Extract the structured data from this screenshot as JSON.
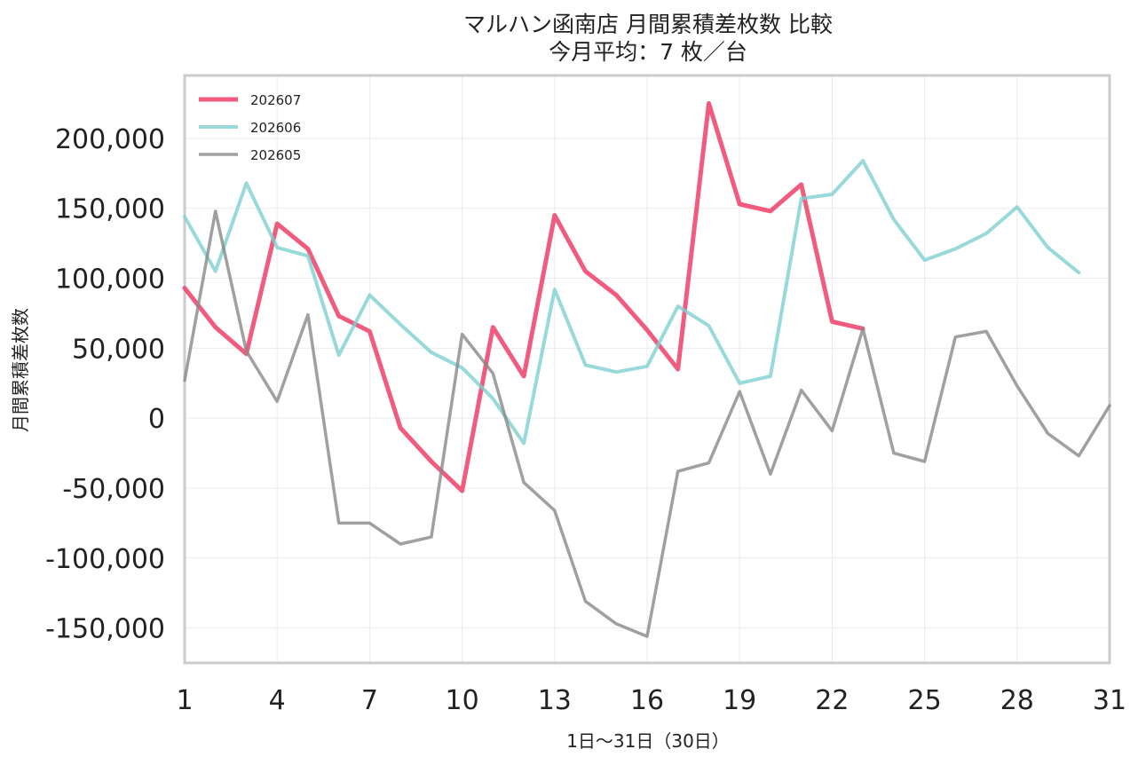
{
  "chart_data": {
    "type": "line",
    "title": "マルハン函南店 月間累積差枚数 比較",
    "subtitle": "今月平均：7 枚／台",
    "xlabel": "1日～31日（30日）",
    "ylabel": "月間累積差枚数",
    "xlim": [
      1,
      31
    ],
    "ylim": [
      -175000,
      245000
    ],
    "xticks": [
      1,
      4,
      7,
      10,
      13,
      16,
      19,
      22,
      25,
      28,
      31
    ],
    "yticks": [
      -150000,
      -100000,
      -50000,
      0,
      50000,
      100000,
      150000,
      200000
    ],
    "ytick_labels": [
      "-150,000",
      "-100,000",
      "-50,000",
      "0",
      "50,000",
      "100,000",
      "150,000",
      "200,000"
    ],
    "grid": true,
    "legend_position": "top-left",
    "series": [
      {
        "name": "202607",
        "color": "#f0496f",
        "x": [
          1,
          2,
          3,
          4,
          5,
          6,
          7,
          8,
          9,
          10,
          11,
          12,
          13,
          14,
          15,
          16,
          17,
          18,
          19,
          20,
          21,
          22,
          23
        ],
        "values": [
          93000,
          65000,
          46000,
          139000,
          121000,
          73000,
          62000,
          -7000,
          -31000,
          -52000,
          65000,
          30000,
          145000,
          105000,
          88000,
          63000,
          35000,
          225000,
          153000,
          148000,
          167000,
          69000,
          64000
        ]
      },
      {
        "name": "202606",
        "color": "#7ed0cf",
        "x": [
          1,
          2,
          3,
          4,
          5,
          6,
          7,
          8,
          9,
          10,
          11,
          12,
          13,
          14,
          15,
          16,
          17,
          18,
          19,
          20,
          21,
          22,
          23,
          24,
          25,
          26,
          27,
          28,
          29,
          30
        ],
        "values": [
          144000,
          105000,
          168000,
          122000,
          116000,
          45000,
          88000,
          67000,
          47000,
          36000,
          14000,
          -18000,
          92000,
          38000,
          33000,
          37000,
          80000,
          66000,
          25000,
          30000,
          157000,
          160000,
          184000,
          142000,
          113000,
          121000,
          132000,
          151000,
          122000,
          104000
        ]
      },
      {
        "name": "202605",
        "color": "#888888",
        "x": [
          1,
          2,
          3,
          4,
          5,
          6,
          7,
          8,
          9,
          10,
          11,
          12,
          13,
          14,
          15,
          16,
          17,
          18,
          19,
          20,
          21,
          22,
          23,
          24,
          25,
          26,
          27,
          28,
          29,
          30,
          31
        ],
        "values": [
          27000,
          148000,
          48000,
          12000,
          74000,
          -75000,
          -75000,
          -90000,
          -85000,
          60000,
          32000,
          -46000,
          -66000,
          -131000,
          -147000,
          -156000,
          -38000,
          -32000,
          19000,
          -40000,
          20000,
          -9000,
          64000,
          -25000,
          -31000,
          58000,
          62000,
          23000,
          -11000,
          -27000,
          9000
        ]
      }
    ]
  }
}
